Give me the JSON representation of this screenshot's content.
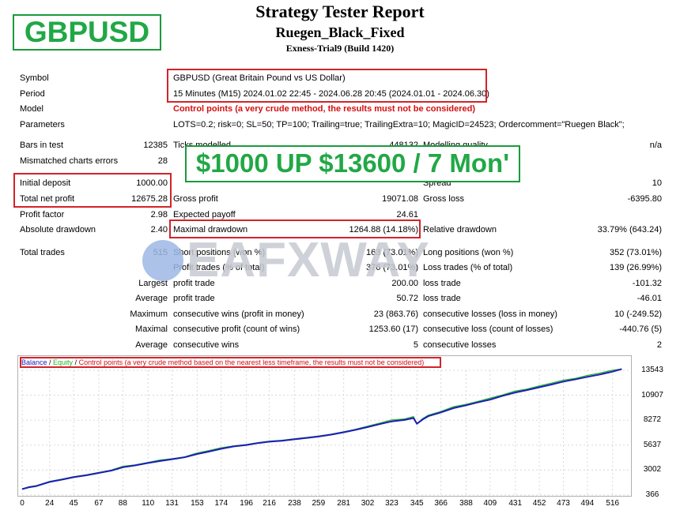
{
  "report": {
    "title": "Strategy Tester Report",
    "ea_name": "Ruegen_Black_Fixed",
    "build": "Exness-Trial9 (Build 1420)"
  },
  "pair_badge": "GBPUSD",
  "promo_banner": "$1000 UP $13600 / 7 Mon'",
  "watermark": "EAFXWAY",
  "details": {
    "symbol_label": "Symbol",
    "symbol_value": "GBPUSD (Great Britain Pound vs US Dollar)",
    "period_label": "Period",
    "period_value": "15 Minutes (M15) 2024.01.02 22:45 - 2024.06.28 20:45 (2024.01.01 - 2024.06.30)",
    "model_label": "Model",
    "model_value": "Control points (a very crude method, the results must not be considered)",
    "params_label": "Parameters",
    "params_value": "LOTS=0.2; risk=0; SL=50; TP=100; Trailing=true; TrailingExtra=10; MagicID=24523; Ordercomment=\"Ruegen Black\";"
  },
  "stats": {
    "bars_label": "Bars in test",
    "bars_value": "12385",
    "ticks_label": "Ticks modelled",
    "ticks_value": "448132",
    "quality_label": "Modelling quality",
    "quality_value": "n/a",
    "mismatch_label": "Mismatched charts errors",
    "mismatch_value": "28",
    "deposit_label": "Initial deposit",
    "deposit_value": "1000.00",
    "spread_label": "Spread",
    "spread_value": "10",
    "netprofit_label": "Total net profit",
    "netprofit_value": "12675.28",
    "grossprofit_label": "Gross profit",
    "grossprofit_value": "19071.08",
    "grossloss_label": "Gross loss",
    "grossloss_value": "-6395.80",
    "pf_label": "Profit factor",
    "pf_value": "2.98",
    "payoff_label": "Expected payoff",
    "payoff_value": "24.61",
    "absdd_label": "Absolute drawdown",
    "absdd_value": "2.40",
    "maxdd_label": "Maximal drawdown",
    "maxdd_value": "1264.88 (14.18%)",
    "reldd_label": "Relative drawdown",
    "reldd_value": "33.79% (643.24)",
    "trades_label": "Total trades",
    "trades_value": "515",
    "short_label": "Short positions (won %)",
    "short_value": "163 (73.01%)",
    "long_label": "Long positions (won %)",
    "long_value": "352 (73.01%)",
    "ptrades_label": "Profit trades (% of total)",
    "ptrades_value": "376 (73.01%)",
    "ltrades_label": "Loss trades (% of total)",
    "ltrades_value": "139 (26.99%)",
    "largest_label": "Largest",
    "largest_pt_label": "profit trade",
    "largest_pt_value": "200.00",
    "largest_lt_label": "loss trade",
    "largest_lt_value": "-101.32",
    "average_label": "Average",
    "average_pt_label": "profit trade",
    "average_pt_value": "50.72",
    "average_lt_label": "loss trade",
    "average_lt_value": "-46.01",
    "maximum_label": "Maximum",
    "max_cw_label": "consecutive wins (profit in money)",
    "max_cw_value": "23 (863.76)",
    "max_cl_label": "consecutive losses (loss in money)",
    "max_cl_value": "10 (-249.52)",
    "maximal_label": "Maximal",
    "maximal_cp_label": "consecutive profit (count of wins)",
    "maximal_cp_value": "1253.60 (17)",
    "maximal_cl_label": "consecutive loss (count of losses)",
    "maximal_cl_value": "-440.76 (5)",
    "avg2_label": "Average",
    "avg_cw_label": "consecutive wins",
    "avg_cw_value": "5",
    "avg_cl_label": "consecutive losses",
    "avg_cl_value": "2"
  },
  "chart_legend": {
    "balance": "Balance",
    "sep1": " / ",
    "equity": "Equity",
    "sep2": " / ",
    "note": "Control points (a very crude method based on the nearest less timeframe, the results must not be considered)"
  },
  "colors": {
    "balance": "#1d1db8",
    "equity": "#22b52a",
    "red_note": "#d41010",
    "badge_green": "#21a845"
  },
  "chart_data": {
    "type": "line",
    "title": "",
    "xlabel": "",
    "ylabel": "",
    "xlim": [
      0,
      530
    ],
    "ylim": [
      366,
      13543
    ],
    "y_ticks": [
      13543,
      10907,
      8272,
      5637,
      3002,
      366
    ],
    "x_ticks": [
      0,
      24,
      45,
      67,
      88,
      110,
      131,
      153,
      174,
      196,
      216,
      238,
      259,
      281,
      302,
      323,
      345,
      366,
      388,
      409,
      431,
      452,
      473,
      494,
      516
    ],
    "series": [
      {
        "name": "Balance",
        "x": [
          0,
          6,
          12,
          24,
          35,
          45,
          56,
          67,
          78,
          88,
          99,
          110,
          120,
          131,
          142,
          153,
          163,
          174,
          185,
          196,
          206,
          216,
          227,
          238,
          249,
          259,
          270,
          281,
          291,
          302,
          312,
          323,
          334,
          342,
          345,
          350,
          355,
          366,
          377,
          388,
          398,
          409,
          420,
          431,
          441,
          452,
          463,
          473,
          484,
          494,
          505,
          516,
          524
        ],
        "values": [
          1000,
          1180,
          1300,
          1750,
          2000,
          2250,
          2450,
          2700,
          2950,
          3300,
          3500,
          3750,
          3950,
          4150,
          4350,
          4700,
          4950,
          5250,
          5500,
          5650,
          5850,
          6000,
          6100,
          6250,
          6400,
          6550,
          6750,
          7000,
          7250,
          7550,
          7850,
          8150,
          8300,
          8500,
          7900,
          8350,
          8700,
          9100,
          9550,
          9850,
          10150,
          10450,
          10850,
          11200,
          11450,
          11750,
          12050,
          12350,
          12600,
          12850,
          13100,
          13400,
          13675
        ]
      },
      {
        "name": "Equity",
        "x": [
          0,
          6,
          12,
          24,
          35,
          45,
          56,
          67,
          78,
          88,
          99,
          110,
          120,
          131,
          142,
          153,
          163,
          174,
          185,
          196,
          206,
          216,
          227,
          238,
          249,
          259,
          270,
          281,
          291,
          302,
          312,
          323,
          334,
          342,
          345,
          350,
          355,
          366,
          377,
          388,
          398,
          409,
          420,
          431,
          441,
          452,
          463,
          473,
          484,
          494,
          505,
          516,
          524
        ],
        "values": [
          1000,
          1250,
          1350,
          1800,
          2050,
          2300,
          2500,
          2750,
          3000,
          3400,
          3550,
          3800,
          4050,
          4200,
          4400,
          4800,
          5050,
          5350,
          5550,
          5700,
          5900,
          6050,
          6150,
          6300,
          6450,
          6600,
          6800,
          7050,
          7300,
          7650,
          7950,
          8300,
          8400,
          8650,
          7900,
          8450,
          8800,
          9200,
          9700,
          9950,
          10250,
          10600,
          10950,
          11350,
          11550,
          11900,
          12200,
          12500,
          12700,
          13000,
          13250,
          13550,
          13675
        ]
      }
    ]
  }
}
